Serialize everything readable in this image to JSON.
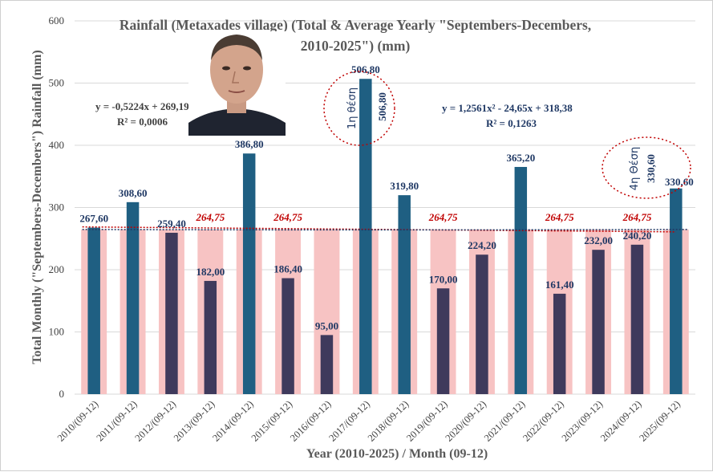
{
  "chart_data": {
    "type": "bar",
    "title_line1": "Rainfall (Metaxades village) (Total & Average Yearly \"Septembers-Decembers,",
    "title_line2": "2010-2025\") (mm)",
    "xlabel": "Year (2010-2025) / Month (09-12)",
    "ylabel": "Total Monthly (\"Septembers-Decembers\") Rainfall (mm)",
    "ylim": [
      0,
      600
    ],
    "yticks": [
      0,
      100,
      200,
      300,
      400,
      500,
      600
    ],
    "categories": [
      "2010/(09-12)",
      "2011/(09-12)",
      "2012/(09-12)",
      "2013/(09-12)",
      "2014/(09-12)",
      "2015/(09-12)",
      "2016/(09-12)",
      "2017/(09-12)",
      "2018/(09-12)",
      "2019/(09-12)",
      "2020/(09-12)",
      "2021/(09-12)",
      "2022/(09-12)",
      "2023/(09-12)",
      "2024/(09-12)",
      "2025/(09-12)"
    ],
    "series": [
      {
        "name": "Total",
        "values": [
          267.6,
          308.6,
          259.4,
          182.0,
          386.8,
          186.4,
          95.0,
          506.8,
          319.8,
          170.0,
          224.2,
          365.2,
          161.4,
          232.0,
          240.2,
          330.6
        ],
        "labels": [
          "267,60",
          "308,60",
          "259,40",
          "182,00",
          "386,80",
          "186,40",
          "95,00",
          "506,80",
          "319,80",
          "170,00",
          "224,20",
          "365,20",
          "161,40",
          "232,00",
          "240,20",
          "330,60"
        ],
        "color_above_avg": "#1f5f82",
        "color_below_avg": "#3f3a5c"
      },
      {
        "name": "Average",
        "value": 264.75,
        "label": "264,75",
        "label_indices": [
          3,
          5,
          9,
          12,
          14
        ],
        "color": "#f7c3c3"
      }
    ],
    "trendlines": [
      {
        "equation": "y = -0,5224x + 269,19",
        "r2": "R² = 0,0006"
      },
      {
        "equation": "y = 1,2561x² - 24,65x + 318,38",
        "r2": "R² = 0,1263"
      }
    ],
    "annotations": [
      {
        "rank": "1η θέση",
        "value": "506,80",
        "index": 7
      },
      {
        "rank": "4η Θέση",
        "value": "330,60",
        "index": 15
      }
    ]
  },
  "colors": {
    "avg_bar": "#f7c3c3",
    "bar_high": "#1f5f82",
    "bar_low": "#3f3a5c",
    "value_label": "#1f3864",
    "avg_label": "#c00000",
    "trend_red": "#c00000",
    "trend_blue": "#1f3864",
    "grid": "#d9d9d9"
  },
  "photo": {
    "name": "portrait-photo"
  }
}
